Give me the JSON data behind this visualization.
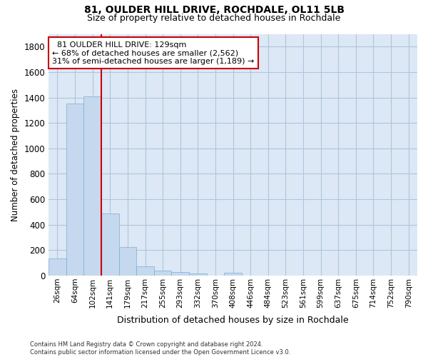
{
  "title_line1": "81, OULDER HILL DRIVE, ROCHDALE, OL11 5LB",
  "title_line2": "Size of property relative to detached houses in Rochdale",
  "xlabel": "Distribution of detached houses by size in Rochdale",
  "ylabel": "Number of detached properties",
  "footnote": "Contains HM Land Registry data © Crown copyright and database right 2024.\nContains public sector information licensed under the Open Government Licence v3.0.",
  "bar_labels": [
    "26sqm",
    "64sqm",
    "102sqm",
    "141sqm",
    "179sqm",
    "217sqm",
    "255sqm",
    "293sqm",
    "332sqm",
    "370sqm",
    "408sqm",
    "446sqm",
    "484sqm",
    "523sqm",
    "561sqm",
    "599sqm",
    "637sqm",
    "675sqm",
    "714sqm",
    "752sqm",
    "790sqm"
  ],
  "bar_values": [
    135,
    1350,
    1410,
    490,
    225,
    75,
    42,
    28,
    14,
    0,
    20,
    0,
    0,
    0,
    0,
    0,
    0,
    0,
    0,
    0,
    0
  ],
  "bar_color": "#c5d8ee",
  "bar_edge_color": "#7aadd4",
  "ylim": [
    0,
    1900
  ],
  "yticks": [
    0,
    200,
    400,
    600,
    800,
    1000,
    1200,
    1400,
    1600,
    1800
  ],
  "red_line_index": 2,
  "annotation_text_line1": "  81 OULDER HILL DRIVE: 129sqm",
  "annotation_text_line2": "← 68% of detached houses are smaller (2,562)",
  "annotation_text_line3": "31% of semi-detached houses are larger (1,189) →",
  "annotation_box_color": "#ffffff",
  "annotation_box_edge": "#cc0000",
  "red_line_color": "#cc0000",
  "background_color": "#ffffff",
  "plot_bg_color": "#dce8f5",
  "grid_color": "#b0c4de"
}
